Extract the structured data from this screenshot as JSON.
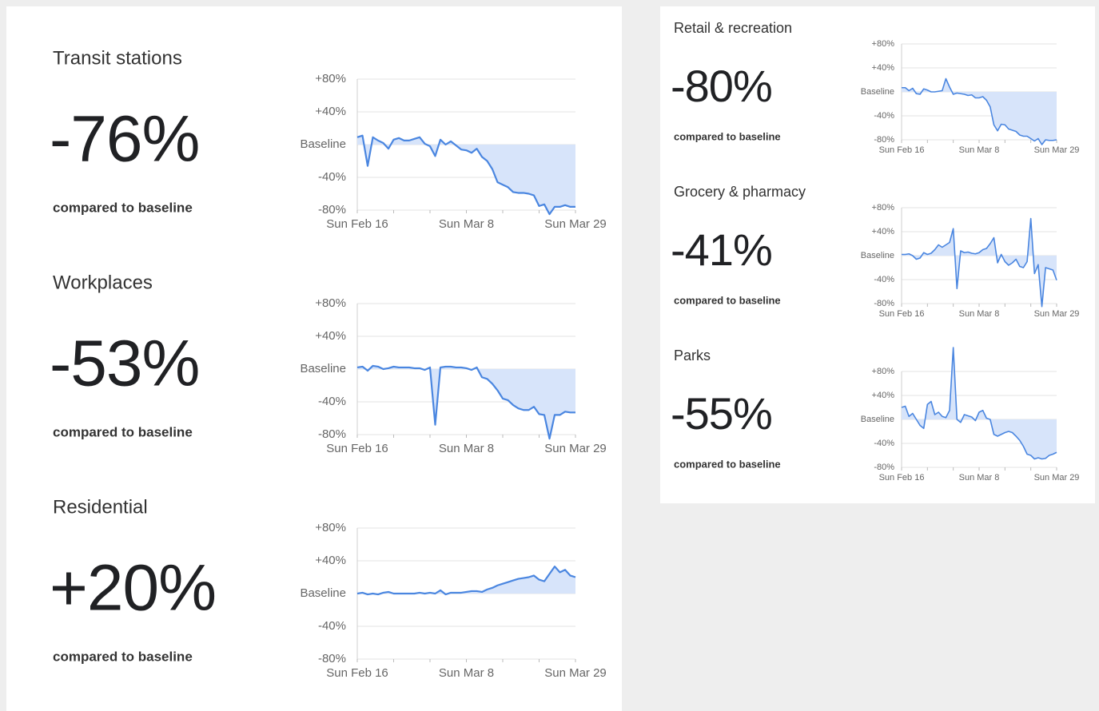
{
  "chart_data": [
    {
      "type": "area",
      "title": "Transit stations",
      "headline": "-76%",
      "subtitle": "compared to baseline",
      "color": "#4a86e0",
      "fill": "#d7e4fa",
      "grid": true,
      "categories": [
        "Sun Feb 16",
        null,
        null,
        null,
        null,
        null,
        null,
        null,
        null,
        null,
        null,
        null,
        null,
        null,
        null,
        null,
        null,
        null,
        null,
        null,
        null,
        "Sun Mar 8",
        null,
        null,
        null,
        null,
        null,
        null,
        null,
        null,
        null,
        null,
        null,
        null,
        null,
        null,
        null,
        null,
        null,
        null,
        null,
        null,
        "Sun Mar 29"
      ],
      "values": [
        9,
        11,
        -26,
        9,
        5,
        2,
        -5,
        6,
        8,
        5,
        5,
        7,
        9,
        1,
        -2,
        -14,
        6,
        0,
        4,
        -1,
        -6,
        -7,
        -10,
        -5,
        -15,
        -20,
        -30,
        -46,
        -49,
        -52,
        -58,
        -59,
        -59,
        -60,
        -62,
        -75,
        -73,
        -85,
        -76,
        -76,
        -74,
        -76,
        -76
      ],
      "ylim": [
        -80,
        80
      ],
      "yticks": [
        {
          "value": 80,
          "label": "+80%"
        },
        {
          "value": 40,
          "label": "+40%"
        },
        {
          "value": 0,
          "label": "Baseline"
        },
        {
          "value": -40,
          "label": "-40%"
        },
        {
          "value": -80,
          "label": "-80%"
        }
      ]
    },
    {
      "type": "area",
      "title": "Workplaces",
      "headline": "-53%",
      "subtitle": "compared to baseline",
      "color": "#4a86e0",
      "fill": "#d7e4fa",
      "grid": true,
      "categories": [
        "Sun Feb 16",
        null,
        null,
        null,
        null,
        null,
        null,
        null,
        null,
        null,
        null,
        null,
        null,
        null,
        null,
        null,
        null,
        null,
        null,
        null,
        null,
        "Sun Mar 8",
        null,
        null,
        null,
        null,
        null,
        null,
        null,
        null,
        null,
        null,
        null,
        null,
        null,
        null,
        null,
        null,
        null,
        null,
        null,
        null,
        "Sun Mar 29"
      ],
      "values": [
        2,
        3,
        -2,
        4,
        3,
        0,
        1,
        3,
        2,
        2,
        2,
        1,
        1,
        -1,
        2,
        -68,
        2,
        3,
        3,
        2,
        2,
        1,
        -1,
        2,
        -10,
        -12,
        -18,
        -26,
        -36,
        -38,
        -44,
        -48,
        -50,
        -50,
        -46,
        -55,
        -56,
        -85,
        -56,
        -56,
        -52,
        -53,
        -53
      ],
      "ylim": [
        -80,
        80
      ],
      "yticks": [
        {
          "value": 80,
          "label": "+80%"
        },
        {
          "value": 40,
          "label": "+40%"
        },
        {
          "value": 0,
          "label": "Baseline"
        },
        {
          "value": -40,
          "label": "-40%"
        },
        {
          "value": -80,
          "label": "-80%"
        }
      ]
    },
    {
      "type": "area",
      "title": "Residential",
      "headline": "+20%",
      "subtitle": "compared to baseline",
      "color": "#4a86e0",
      "fill": "#d7e4fa",
      "grid": true,
      "categories": [
        "Sun Feb 16",
        null,
        null,
        null,
        null,
        null,
        null,
        null,
        null,
        null,
        null,
        null,
        null,
        null,
        null,
        null,
        null,
        null,
        null,
        null,
        null,
        "Sun Mar 8",
        null,
        null,
        null,
        null,
        null,
        null,
        null,
        null,
        null,
        null,
        null,
        null,
        null,
        null,
        null,
        null,
        null,
        null,
        null,
        null,
        "Sun Mar 29"
      ],
      "values": [
        0,
        1,
        -1,
        0,
        -1,
        1,
        2,
        0,
        0,
        0,
        0,
        0,
        1,
        0,
        1,
        0,
        4,
        -1,
        1,
        1,
        1,
        2,
        3,
        3,
        2,
        5,
        7,
        10,
        12,
        14,
        16,
        18,
        19,
        20,
        22,
        17,
        15,
        24,
        33,
        26,
        29,
        22,
        20
      ],
      "ylim": [
        -80,
        80
      ],
      "yticks": [
        {
          "value": 80,
          "label": "+80%"
        },
        {
          "value": 40,
          "label": "+40%"
        },
        {
          "value": 0,
          "label": "Baseline"
        },
        {
          "value": -40,
          "label": "-40%"
        },
        {
          "value": -80,
          "label": "-80%"
        }
      ]
    },
    {
      "type": "area",
      "title": "Retail & recreation",
      "headline": "-80%",
      "subtitle": "compared to baseline",
      "color": "#4a86e0",
      "fill": "#d7e4fa",
      "grid": true,
      "categories": [
        "Sun Feb 16",
        null,
        null,
        null,
        null,
        null,
        null,
        null,
        null,
        null,
        null,
        null,
        null,
        null,
        null,
        null,
        null,
        null,
        null,
        null,
        null,
        "Sun Mar 8",
        null,
        null,
        null,
        null,
        null,
        null,
        null,
        null,
        null,
        null,
        null,
        null,
        null,
        null,
        null,
        null,
        null,
        null,
        null,
        null,
        "Sun Mar 29"
      ],
      "values": [
        7,
        7,
        2,
        6,
        -3,
        -4,
        5,
        3,
        0,
        0,
        1,
        2,
        22,
        8,
        -4,
        -2,
        -3,
        -4,
        -6,
        -5,
        -10,
        -10,
        -8,
        -14,
        -25,
        -55,
        -65,
        -54,
        -55,
        -62,
        -64,
        -66,
        -72,
        -74,
        -74,
        -78,
        -82,
        -78,
        -88,
        -80,
        -81,
        -81,
        -80
      ],
      "ylim": [
        -80,
        80
      ],
      "yticks": [
        {
          "value": 80,
          "label": "+80%"
        },
        {
          "value": 40,
          "label": "+40%"
        },
        {
          "value": 0,
          "label": "Baseline"
        },
        {
          "value": -40,
          "label": "-40%"
        },
        {
          "value": -80,
          "label": "-80%"
        }
      ]
    },
    {
      "type": "area",
      "title": "Grocery & pharmacy",
      "headline": "-41%",
      "subtitle": "compared to baseline",
      "color": "#4a86e0",
      "fill": "#d7e4fa",
      "grid": true,
      "categories": [
        "Sun Feb 16",
        null,
        null,
        null,
        null,
        null,
        null,
        null,
        null,
        null,
        null,
        null,
        null,
        null,
        null,
        null,
        null,
        null,
        null,
        null,
        null,
        "Sun Mar 8",
        null,
        null,
        null,
        null,
        null,
        null,
        null,
        null,
        null,
        null,
        null,
        null,
        null,
        null,
        null,
        null,
        null,
        null,
        null,
        null,
        "Sun Mar 29"
      ],
      "values": [
        2,
        2,
        3,
        0,
        -6,
        -4,
        5,
        2,
        4,
        10,
        18,
        14,
        18,
        22,
        45,
        -55,
        8,
        5,
        6,
        4,
        3,
        5,
        10,
        12,
        20,
        30,
        -12,
        2,
        -10,
        -16,
        -12,
        -6,
        -18,
        -20,
        -10,
        62,
        -30,
        -15,
        -85,
        -20,
        -22,
        -24,
        -41
      ],
      "ylim": [
        -80,
        80
      ],
      "yticks": [
        {
          "value": 80,
          "label": "+80%"
        },
        {
          "value": 40,
          "label": "+40%"
        },
        {
          "value": 0,
          "label": "Baseline"
        },
        {
          "value": -40,
          "label": "-40%"
        },
        {
          "value": -80,
          "label": "-80%"
        }
      ]
    },
    {
      "type": "area",
      "title": "Parks",
      "headline": "-55%",
      "subtitle": "compared to baseline",
      "color": "#4a86e0",
      "fill": "#d7e4fa",
      "grid": true,
      "categories": [
        "Sun Feb 16",
        null,
        null,
        null,
        null,
        null,
        null,
        null,
        null,
        null,
        null,
        null,
        null,
        null,
        null,
        null,
        null,
        null,
        null,
        null,
        null,
        "Sun Mar 8",
        null,
        null,
        null,
        null,
        null,
        null,
        null,
        null,
        null,
        null,
        null,
        null,
        null,
        null,
        null,
        null,
        null,
        null,
        null,
        null,
        "Sun Mar 29"
      ],
      "values": [
        20,
        22,
        5,
        10,
        0,
        -10,
        -15,
        25,
        30,
        8,
        12,
        5,
        3,
        15,
        120,
        0,
        -5,
        8,
        6,
        4,
        -2,
        12,
        15,
        2,
        0,
        -25,
        -28,
        -25,
        -22,
        -20,
        -22,
        -28,
        -35,
        -45,
        -58,
        -60,
        -66,
        -64,
        -66,
        -65,
        -60,
        -58,
        -55
      ],
      "ylim": [
        -80,
        80
      ],
      "yticks": [
        {
          "value": 80,
          "label": "+80%"
        },
        {
          "value": 40,
          "label": "+40%"
        },
        {
          "value": 0,
          "label": "Baseline"
        },
        {
          "value": -40,
          "label": "-40%"
        },
        {
          "value": -80,
          "label": "-80%"
        }
      ]
    }
  ]
}
